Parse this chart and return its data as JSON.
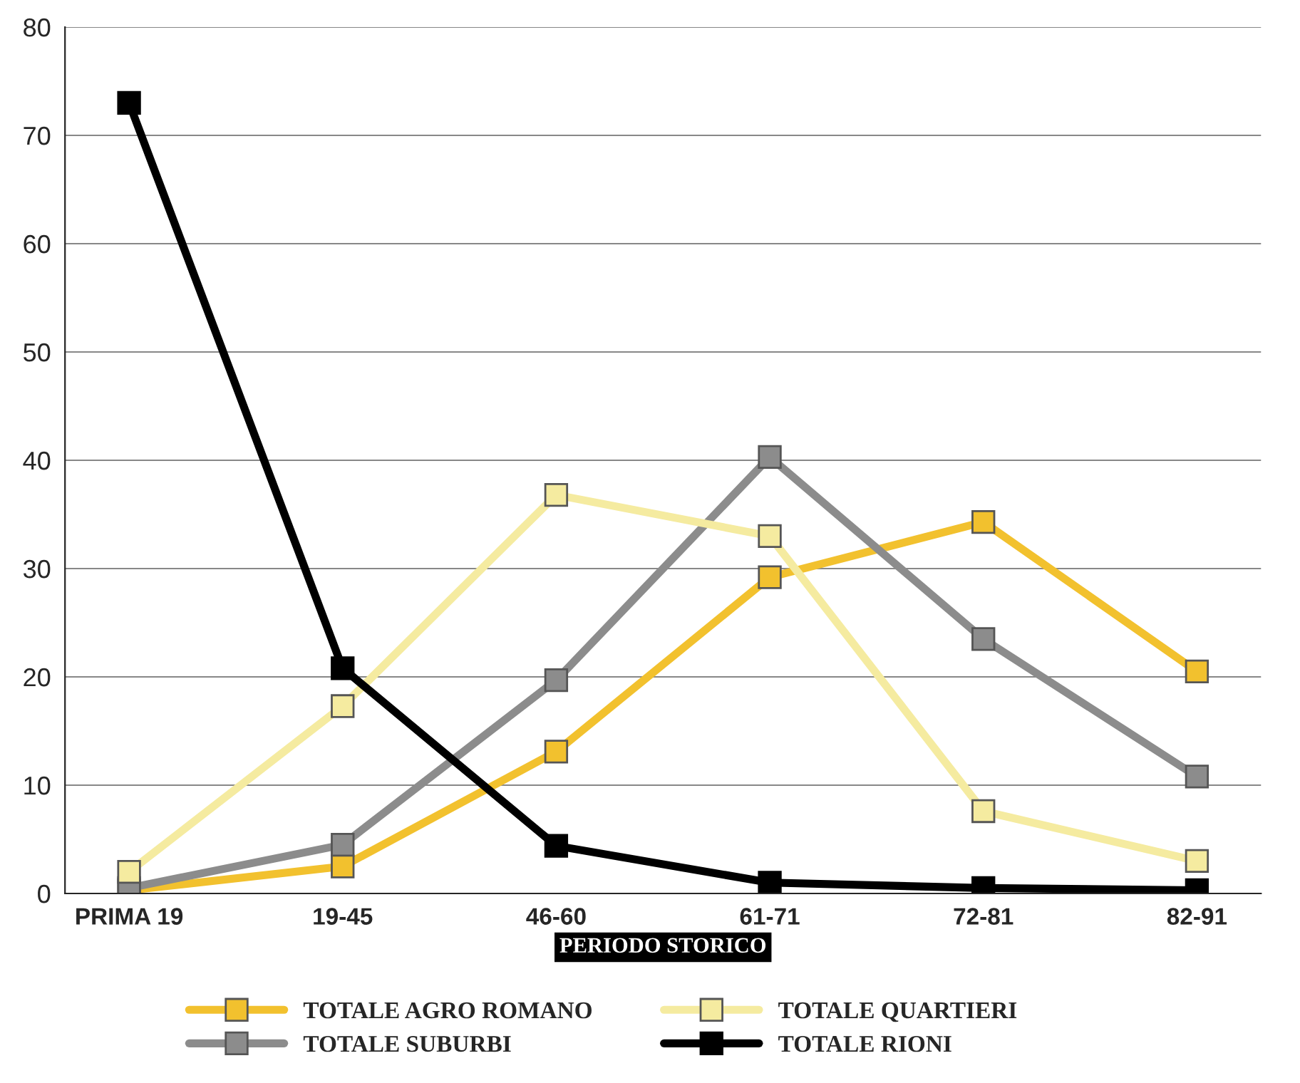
{
  "chart_data": {
    "type": "line",
    "xlabel": "PERIODO STORICO",
    "categories": [
      "PRIMA 19",
      "19-45",
      "46-60",
      "61-71",
      "72-81",
      "82-91"
    ],
    "series": [
      {
        "name": "TOTALE AGRO ROMANO",
        "color": "#f2c12e",
        "values": [
          0.3,
          2.5,
          13.1,
          29.2,
          34.3,
          20.5
        ]
      },
      {
        "name": "TOTALE SUBURBI",
        "color": "#8c8c8c",
        "values": [
          0.5,
          4.5,
          19.7,
          40.3,
          23.5,
          10.8
        ]
      },
      {
        "name": "TOTALE QUARTIERI",
        "color": "#f5eba0",
        "values": [
          2,
          17.3,
          36.8,
          33,
          7.6,
          3
        ]
      },
      {
        "name": "TOTALE RIONI",
        "color": "#000000",
        "values": [
          73,
          20.8,
          4.4,
          1,
          0.5,
          0.3
        ]
      }
    ],
    "ylim": [
      0,
      80
    ],
    "yticks": [
      0,
      10,
      20,
      30,
      40,
      50,
      60,
      70,
      80
    ],
    "grid": "y",
    "legend": "bottom",
    "marker": "square",
    "line_style": "solid"
  }
}
